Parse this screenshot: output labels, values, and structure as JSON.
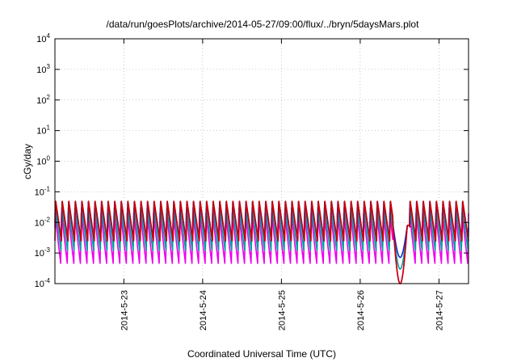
{
  "chart_data": {
    "type": "line",
    "title": "/data/run/goesPlots/archive/2014-05-27/09:00/flux/../bryn/5daysMars.plot",
    "xlabel": "Coordinated Universal Time (UTC)",
    "ylabel": "cGy/day",
    "yscale": "log",
    "ylim": [
      0.0001,
      10000
    ],
    "xlim": [
      "2014-05-22 03:00",
      "2014-05-27 09:00"
    ],
    "x_ticks": [
      "2014-5-23",
      "2014-5-24",
      "2014-5-25",
      "2014-5-26",
      "2014-5-27"
    ],
    "y_ticks": [
      {
        "base": "10",
        "exp": "4"
      },
      {
        "base": "10",
        "exp": "3"
      },
      {
        "base": "10",
        "exp": "2"
      },
      {
        "base": "10",
        "exp": "1"
      },
      {
        "base": "10",
        "exp": "0"
      },
      {
        "base": "10",
        "exp": "-1"
      },
      {
        "base": "10",
        "exp": "-2"
      },
      {
        "base": "10",
        "exp": "-3"
      },
      {
        "base": "10",
        "exp": "-4"
      }
    ],
    "grid": true,
    "legend": "none",
    "series": [
      {
        "color": "#cc0000",
        "peak": 0.05,
        "trough": 0.0025
      },
      {
        "color": "#2222cc",
        "peak": 0.048,
        "trough": 0.0025
      },
      {
        "color": "#00a0a0",
        "peak": 0.03,
        "trough": 0.0012
      },
      {
        "color": "#ee00ee",
        "peak": 0.02,
        "trough": 0.00045
      }
    ],
    "sawtooth_period_hours": 2.0,
    "dropout": {
      "start": "2014-05-26 10:00",
      "end": "2014-05-26 15:00",
      "min": 0.0001
    }
  }
}
